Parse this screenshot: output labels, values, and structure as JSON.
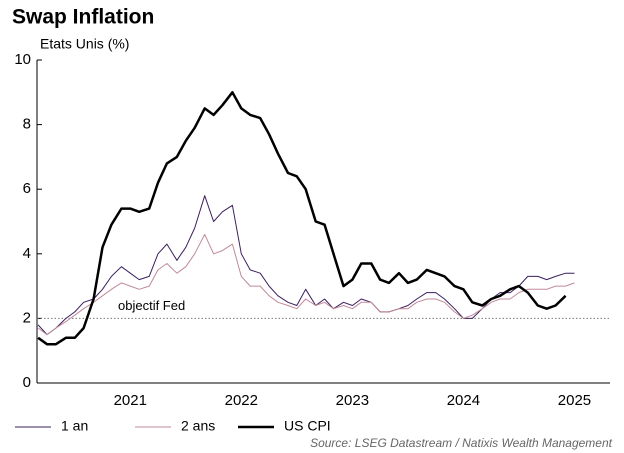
{
  "chart_data": {
    "type": "line",
    "title": "Swap Inflation",
    "subtitle": "Etats Unis (%)",
    "source": "Source: LSEG Datastream / Natixis Wealth Management",
    "annotation": {
      "text": "objectif Fed",
      "value": 2
    },
    "x": [
      2020.67,
      2020.75,
      2020.83,
      2020.92,
      2021.0,
      2021.08,
      2021.17,
      2021.25,
      2021.33,
      2021.42,
      2021.5,
      2021.58,
      2021.67,
      2021.75,
      2021.83,
      2021.92,
      2022.0,
      2022.08,
      2022.17,
      2022.25,
      2022.33,
      2022.42,
      2022.5,
      2022.58,
      2022.67,
      2022.75,
      2022.83,
      2022.92,
      2023.0,
      2023.08,
      2023.17,
      2023.25,
      2023.33,
      2023.42,
      2023.5,
      2023.58,
      2023.67,
      2023.75,
      2023.83,
      2023.92,
      2024.0,
      2024.08,
      2024.17,
      2024.25,
      2024.33,
      2024.42,
      2024.5,
      2024.58,
      2024.67,
      2024.75,
      2024.83,
      2024.92,
      2025.0,
      2025.08,
      2025.17,
      2025.25,
      2025.33,
      2025.42,
      2025.5
    ],
    "series": [
      {
        "name": "1 an",
        "color": "#3b1f5e",
        "width": 1,
        "values": [
          1.8,
          1.5,
          1.7,
          2.0,
          2.2,
          2.5,
          2.6,
          2.9,
          3.3,
          3.6,
          3.4,
          3.2,
          3.3,
          4.0,
          4.3,
          3.8,
          4.2,
          4.8,
          5.8,
          5.0,
          5.3,
          5.5,
          4.0,
          3.5,
          3.4,
          3.0,
          2.7,
          2.5,
          2.4,
          2.9,
          2.4,
          2.6,
          2.3,
          2.5,
          2.4,
          2.6,
          2.5,
          2.2,
          2.2,
          2.3,
          2.4,
          2.6,
          2.8,
          2.8,
          2.6,
          2.3,
          2.0,
          2.0,
          2.3,
          2.6,
          2.8,
          2.8,
          3.0,
          3.3,
          3.3,
          3.2,
          3.3,
          3.4,
          3.4
        ]
      },
      {
        "name": "2 ans",
        "color": "#c08a9a",
        "width": 1,
        "values": [
          1.7,
          1.5,
          1.7,
          1.9,
          2.1,
          2.3,
          2.5,
          2.7,
          2.9,
          3.1,
          3.0,
          2.9,
          3.0,
          3.5,
          3.7,
          3.4,
          3.6,
          4.0,
          4.6,
          4.0,
          4.1,
          4.3,
          3.3,
          3.0,
          3.0,
          2.7,
          2.5,
          2.4,
          2.3,
          2.6,
          2.4,
          2.5,
          2.3,
          2.4,
          2.3,
          2.5,
          2.5,
          2.2,
          2.2,
          2.3,
          2.3,
          2.5,
          2.6,
          2.6,
          2.5,
          2.2,
          2.0,
          2.1,
          2.3,
          2.5,
          2.6,
          2.6,
          2.8,
          2.9,
          2.9,
          2.9,
          3.0,
          3.0,
          3.1
        ]
      },
      {
        "name": "US CPI",
        "color": "#000000",
        "width": 2.5,
        "values": [
          1.4,
          1.2,
          1.2,
          1.4,
          1.4,
          1.7,
          2.6,
          4.2,
          4.9,
          5.4,
          5.4,
          5.3,
          5.4,
          6.2,
          6.8,
          7.0,
          7.5,
          7.9,
          8.5,
          8.3,
          8.6,
          9.0,
          8.5,
          8.3,
          8.2,
          7.7,
          7.1,
          6.5,
          6.4,
          6.0,
          5.0,
          4.9,
          4.0,
          3.0,
          3.2,
          3.7,
          3.7,
          3.2,
          3.1,
          3.4,
          3.1,
          3.2,
          3.5,
          3.4,
          3.3,
          3.0,
          2.9,
          2.5,
          2.4,
          2.6,
          2.7,
          2.9,
          3.0,
          2.8,
          2.4,
          2.3,
          2.4,
          2.7,
          null
        ]
      }
    ],
    "xlim": [
      2020.66,
      2025.82
    ],
    "xticks": [
      {
        "value": 2021.5,
        "label": "2021"
      },
      {
        "value": 2022.5,
        "label": "2022"
      },
      {
        "value": 2023.5,
        "label": "2023"
      },
      {
        "value": 2024.5,
        "label": "2024"
      },
      {
        "value": 2025.5,
        "label": "2025"
      }
    ],
    "ylim": [
      0,
      10
    ],
    "yticks": [
      0,
      2,
      4,
      6,
      8,
      10
    ],
    "legend": "bottom"
  }
}
